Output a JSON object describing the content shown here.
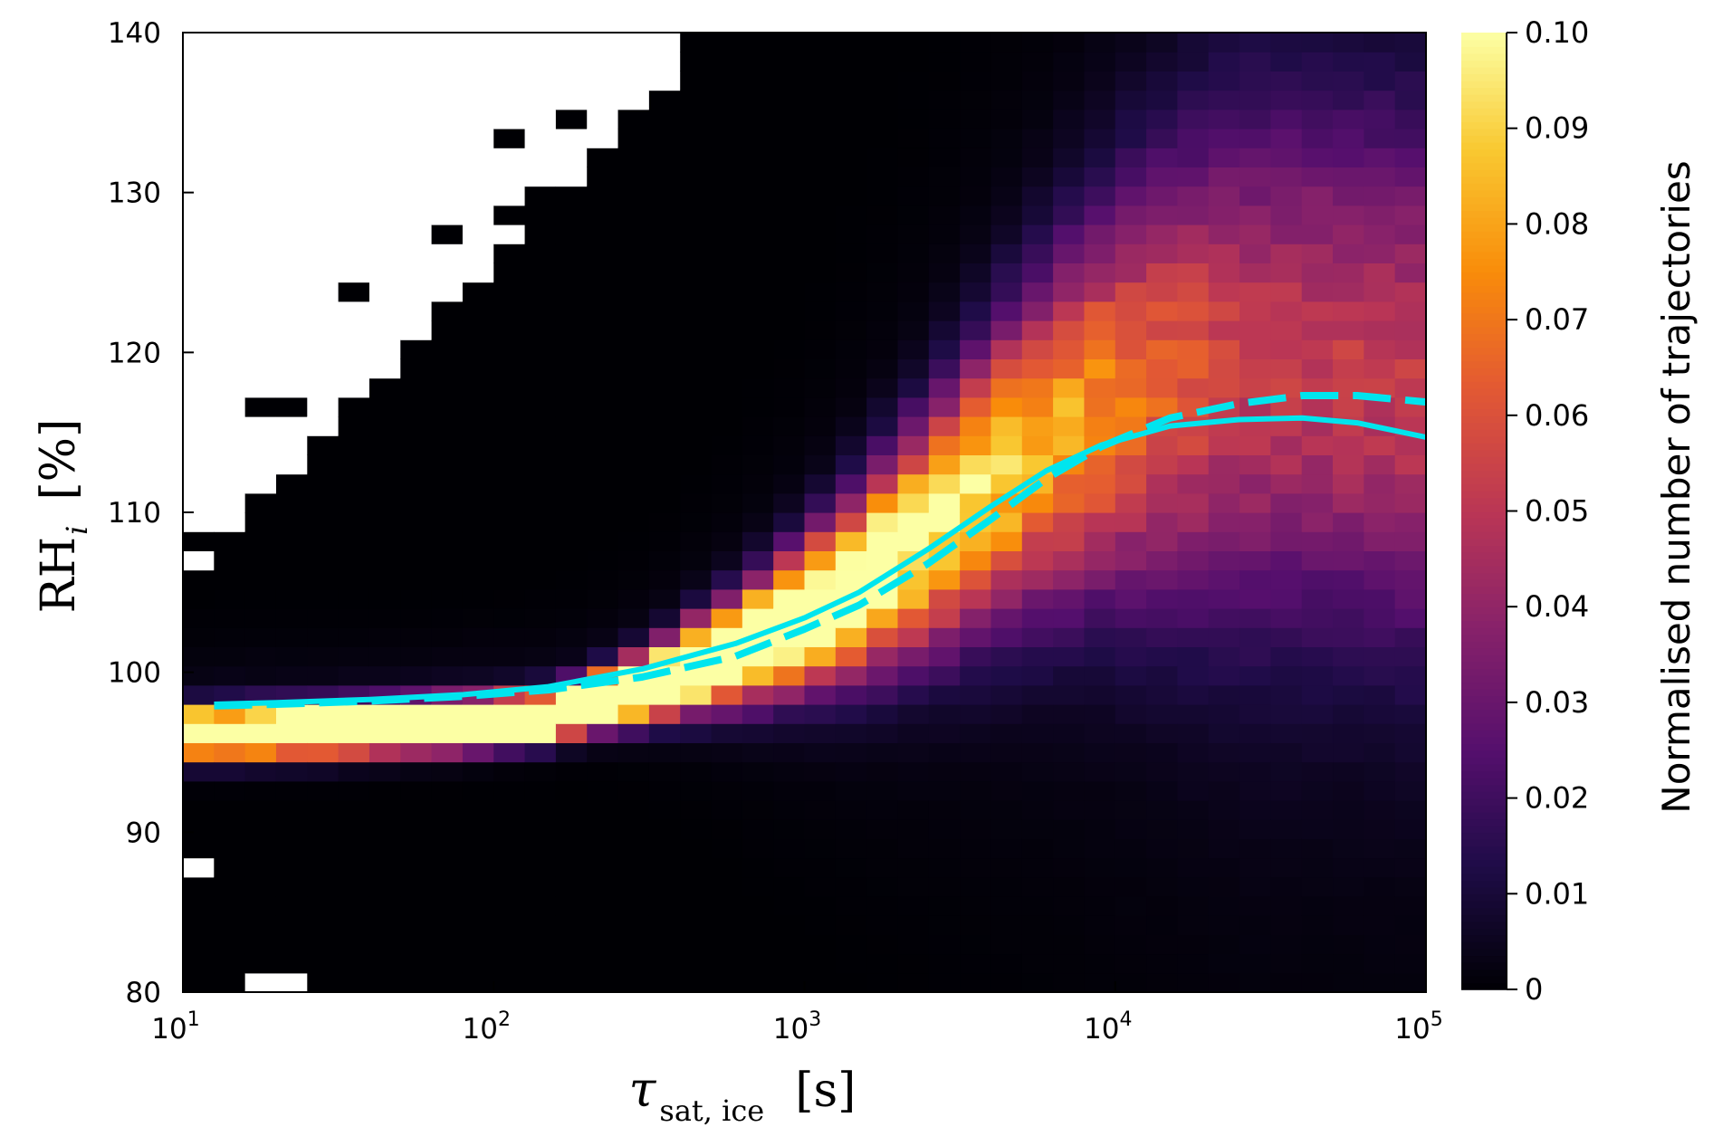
{
  "chart_data": {
    "type": "heatmap",
    "x_scale": "log",
    "xlim": [
      10,
      100000
    ],
    "ylim": [
      80,
      140
    ],
    "x_ticks": [
      {
        "value": 10,
        "base": "10",
        "exp": "1"
      },
      {
        "value": 100,
        "base": "10",
        "exp": "2"
      },
      {
        "value": 1000,
        "base": "10",
        "exp": "3"
      },
      {
        "value": 10000,
        "base": "10",
        "exp": "4"
      },
      {
        "value": 100000,
        "base": "10",
        "exp": "5"
      }
    ],
    "y_ticks": [
      {
        "value": 80,
        "label": "80"
      },
      {
        "value": 90,
        "label": "90"
      },
      {
        "value": 100,
        "label": "100"
      },
      {
        "value": 110,
        "label": "110"
      },
      {
        "value": 120,
        "label": "120"
      },
      {
        "value": 130,
        "label": "130"
      },
      {
        "value": 140,
        "label": "140"
      }
    ],
    "xlabel": {
      "symbol": "τ",
      "subscript": "sat, ice",
      "unit": "[s]"
    },
    "ylabel": {
      "symbol": "RH",
      "subscript": "i",
      "unit": "[%]"
    },
    "colorbar": {
      "label": "Normalised number of trajectories",
      "range": [
        0,
        0.1
      ],
      "colormap": "inferno",
      "ticks": [
        {
          "value": 0,
          "label": "0"
        },
        {
          "value": 0.01,
          "label": "0.01"
        },
        {
          "value": 0.02,
          "label": "0.02"
        },
        {
          "value": 0.03,
          "label": "0.03"
        },
        {
          "value": 0.04,
          "label": "0.04"
        },
        {
          "value": 0.05,
          "label": "0.05"
        },
        {
          "value": 0.06,
          "label": "0.06"
        },
        {
          "value": 0.07,
          "label": "0.07"
        },
        {
          "value": 0.08,
          "label": "0.08"
        },
        {
          "value": 0.09,
          "label": "0.09"
        },
        {
          "value": 0.1,
          "label": "0.10"
        }
      ]
    },
    "heatmap_description": {
      "bins_x_per_decade": 10,
      "bin_height_RHi": 1.2,
      "ridge": "concentrated near RHi 96-100% for tau below ~300 s, rising through ~105% at 2000 s and spreading to ~115-125% beyond 10^4 s",
      "empty_bins": "white cells in upper-left (high RHi, short tau) and a few near 80-90% at the shortest tau"
    },
    "colors": {
      "curve": "#00e5ee",
      "empty_bin": "#ffffff"
    },
    "series": [
      {
        "line_style": "solid",
        "x": [
          12.6,
          20,
          40,
          80,
          150,
          300,
          600,
          1000,
          1500,
          2500,
          4000,
          6000,
          9000,
          15000,
          25000,
          40000,
          60000,
          100000
        ],
        "y": [
          98.0,
          98.1,
          98.3,
          98.6,
          99.1,
          100.2,
          101.8,
          103.4,
          105.0,
          107.7,
          110.4,
          112.6,
          114.2,
          115.4,
          115.8,
          115.9,
          115.6,
          114.7
        ]
      },
      {
        "line_style": "dashed",
        "x": [
          12.6,
          20,
          40,
          80,
          150,
          300,
          600,
          1000,
          1500,
          2500,
          4000,
          6000,
          9000,
          15000,
          25000,
          40000,
          60000,
          100000
        ],
        "y": [
          97.9,
          98.0,
          98.2,
          98.5,
          98.9,
          99.7,
          101.0,
          102.7,
          104.2,
          106.8,
          109.6,
          112.1,
          114.1,
          115.9,
          116.8,
          117.3,
          117.3,
          116.9
        ]
      }
    ]
  }
}
